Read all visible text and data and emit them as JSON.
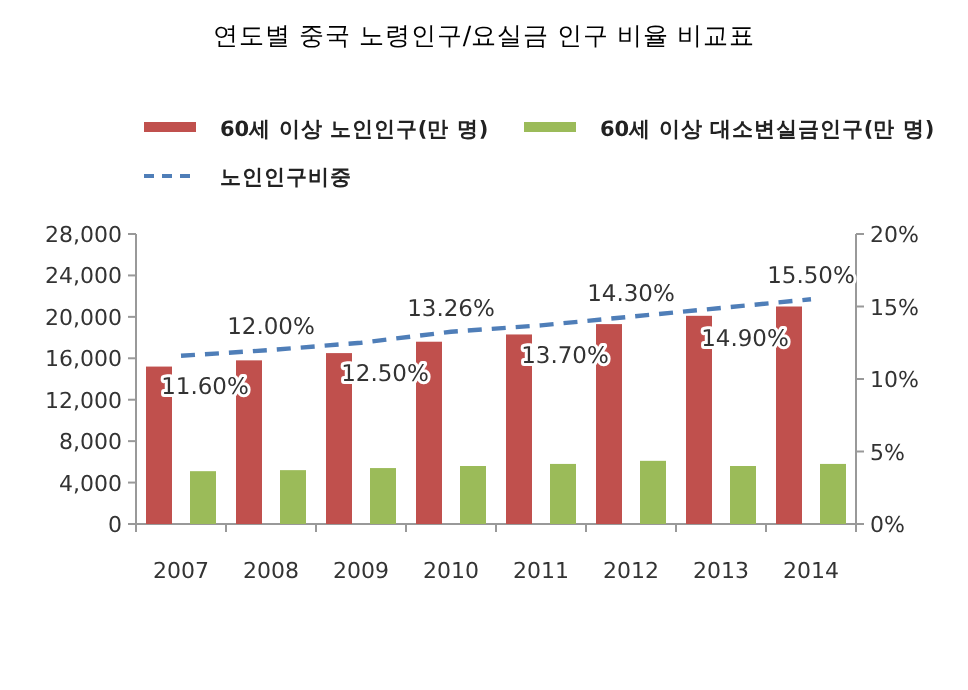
{
  "chart_data": {
    "type": "bar",
    "title": "연도별 중국 노령인구/요실금 인구 비율 비교표",
    "categories": [
      "2007",
      "2008",
      "2009",
      "2010",
      "2011",
      "2012",
      "2013",
      "2014"
    ],
    "series": [
      {
        "name": "60세 이상 노인인구(만 명)",
        "color": "#c0504d",
        "values": [
          15200,
          15800,
          16500,
          17600,
          18300,
          19300,
          20100,
          21000
        ]
      },
      {
        "name": "60세 이상  대소변실금인구(만 명)",
        "color": "#9bbb59",
        "values": [
          5100,
          5200,
          5400,
          5600,
          5800,
          6100,
          5600,
          5800
        ]
      },
      {
        "name": "노인인구비중",
        "type": "line",
        "axis": "y2",
        "color": "#4f7eb8",
        "line_style": "dashed",
        "marker": "none",
        "data_labels": true,
        "value_labels": [
          "11.60%",
          "12.00%",
          "12.50%",
          "13.26%",
          "13.70%",
          "14.30%",
          "14.90%",
          "15.50%"
        ],
        "values": [
          11.6,
          12.0,
          12.5,
          13.26,
          13.7,
          14.3,
          14.9,
          15.5
        ]
      }
    ],
    "ylim": [
      0,
      28000
    ],
    "yticks": [
      {
        "value": 0,
        "label": "0"
      },
      {
        "value": 4000,
        "label": "4,000"
      },
      {
        "value": 8000,
        "label": "8,000"
      },
      {
        "value": 12000,
        "label": "12,000"
      },
      {
        "value": 16000,
        "label": "16,000"
      },
      {
        "value": 20000,
        "label": "20,000"
      },
      {
        "value": 24000,
        "label": "24,000"
      },
      {
        "value": 28000,
        "label": "28,000"
      }
    ],
    "y2lim": [
      0,
      20
    ],
    "y2ticks": [
      {
        "value": 0,
        "label": "0%"
      },
      {
        "value": 5,
        "label": "5%"
      },
      {
        "value": 10,
        "label": "10%"
      },
      {
        "value": 15,
        "label": "15%"
      },
      {
        "value": 20,
        "label": "20%"
      }
    ],
    "legend": "top",
    "grid": false
  }
}
